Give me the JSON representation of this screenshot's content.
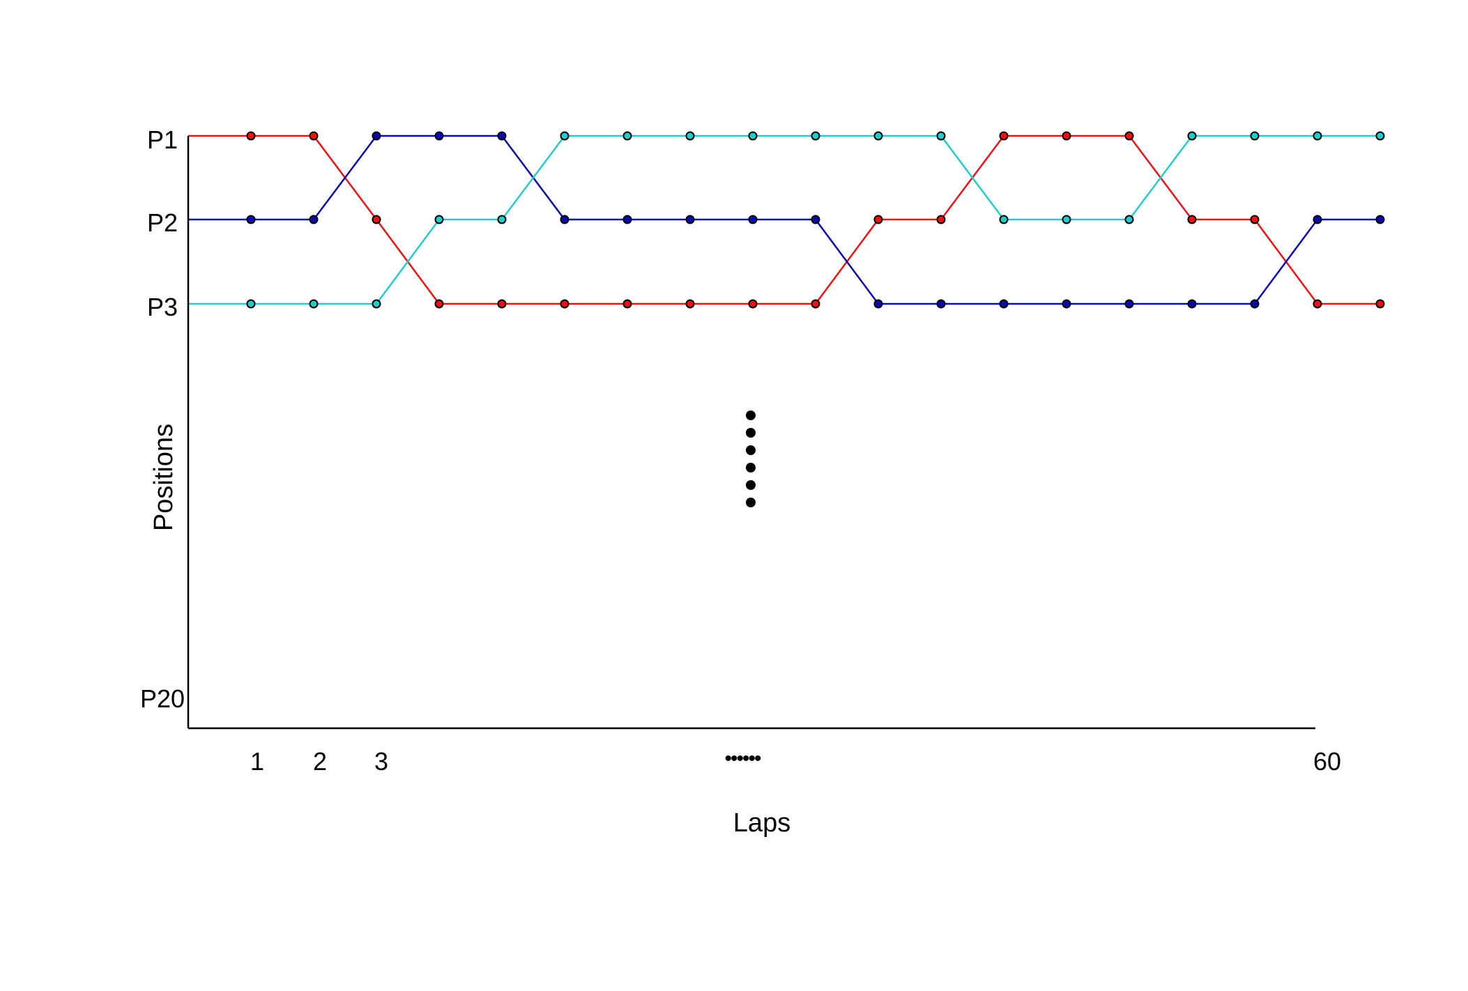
{
  "chart_data": {
    "type": "line",
    "xlabel": "Laps",
    "ylabel": "Positions",
    "x_tick_labels": [
      "1",
      "2",
      "3",
      "••••••",
      "60"
    ],
    "y_tick_labels": [
      "P1",
      "P2",
      "P3",
      "P20"
    ],
    "ylim": [
      1,
      20
    ],
    "y_inverted": true,
    "grid": false,
    "legend": "none",
    "x": [
      0,
      1,
      2,
      3,
      4,
      5,
      6,
      7,
      8,
      9,
      10,
      11,
      12,
      13,
      14,
      15,
      16,
      17,
      18,
      19
    ],
    "series": [
      {
        "color": "#ee1111",
        "values": [
          1,
          1,
          1,
          2,
          3,
          3,
          3,
          3,
          3,
          3,
          3,
          2,
          2,
          1,
          1,
          1,
          2,
          2,
          3,
          3
        ]
      },
      {
        "color": "#0a0ab4",
        "values": [
          2,
          2,
          2,
          1,
          1,
          1,
          2,
          2,
          2,
          2,
          2,
          3,
          3,
          3,
          3,
          3,
          3,
          3,
          2,
          2
        ]
      },
      {
        "color": "#22cccc",
        "values": [
          3,
          3,
          3,
          3,
          2,
          2,
          1,
          1,
          1,
          1,
          1,
          1,
          1,
          2,
          2,
          2,
          1,
          1,
          1,
          1
        ]
      }
    ],
    "vertical_ellipsis_dots": 6
  }
}
